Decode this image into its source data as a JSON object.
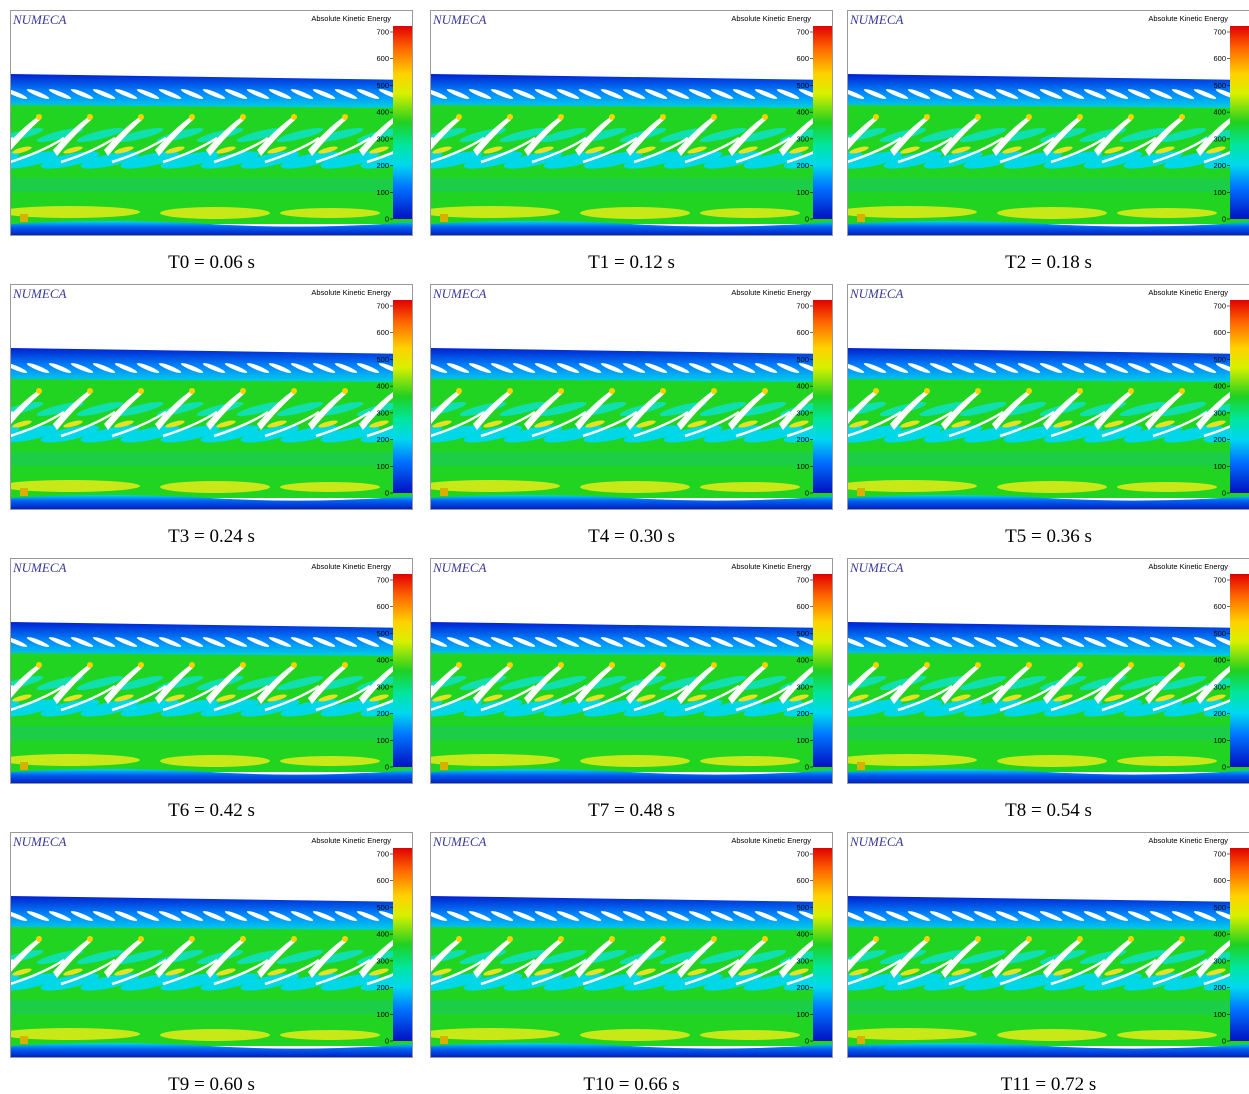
{
  "logo": "NUMECA",
  "legend": {
    "title": "Absolute Kinetic Energy",
    "ticks": [
      0,
      100,
      200,
      300,
      400,
      500,
      600,
      700
    ]
  },
  "panels": [
    {
      "caption": "T0 = 0.06 s"
    },
    {
      "caption": "T1 = 0.12 s"
    },
    {
      "caption": "T2 = 0.18 s"
    },
    {
      "caption": "T3 = 0.24 s"
    },
    {
      "caption": "T4 = 0.30 s"
    },
    {
      "caption": "T5 = 0.36 s"
    },
    {
      "caption": "T6 = 0.42 s"
    },
    {
      "caption": "T7 = 0.48 s"
    },
    {
      "caption": "T8 = 0.54 s"
    },
    {
      "caption": "T9 = 0.60 s"
    },
    {
      "caption": "T10 = 0.66 s"
    },
    {
      "caption": "T11 = 0.72 s"
    }
  ]
}
